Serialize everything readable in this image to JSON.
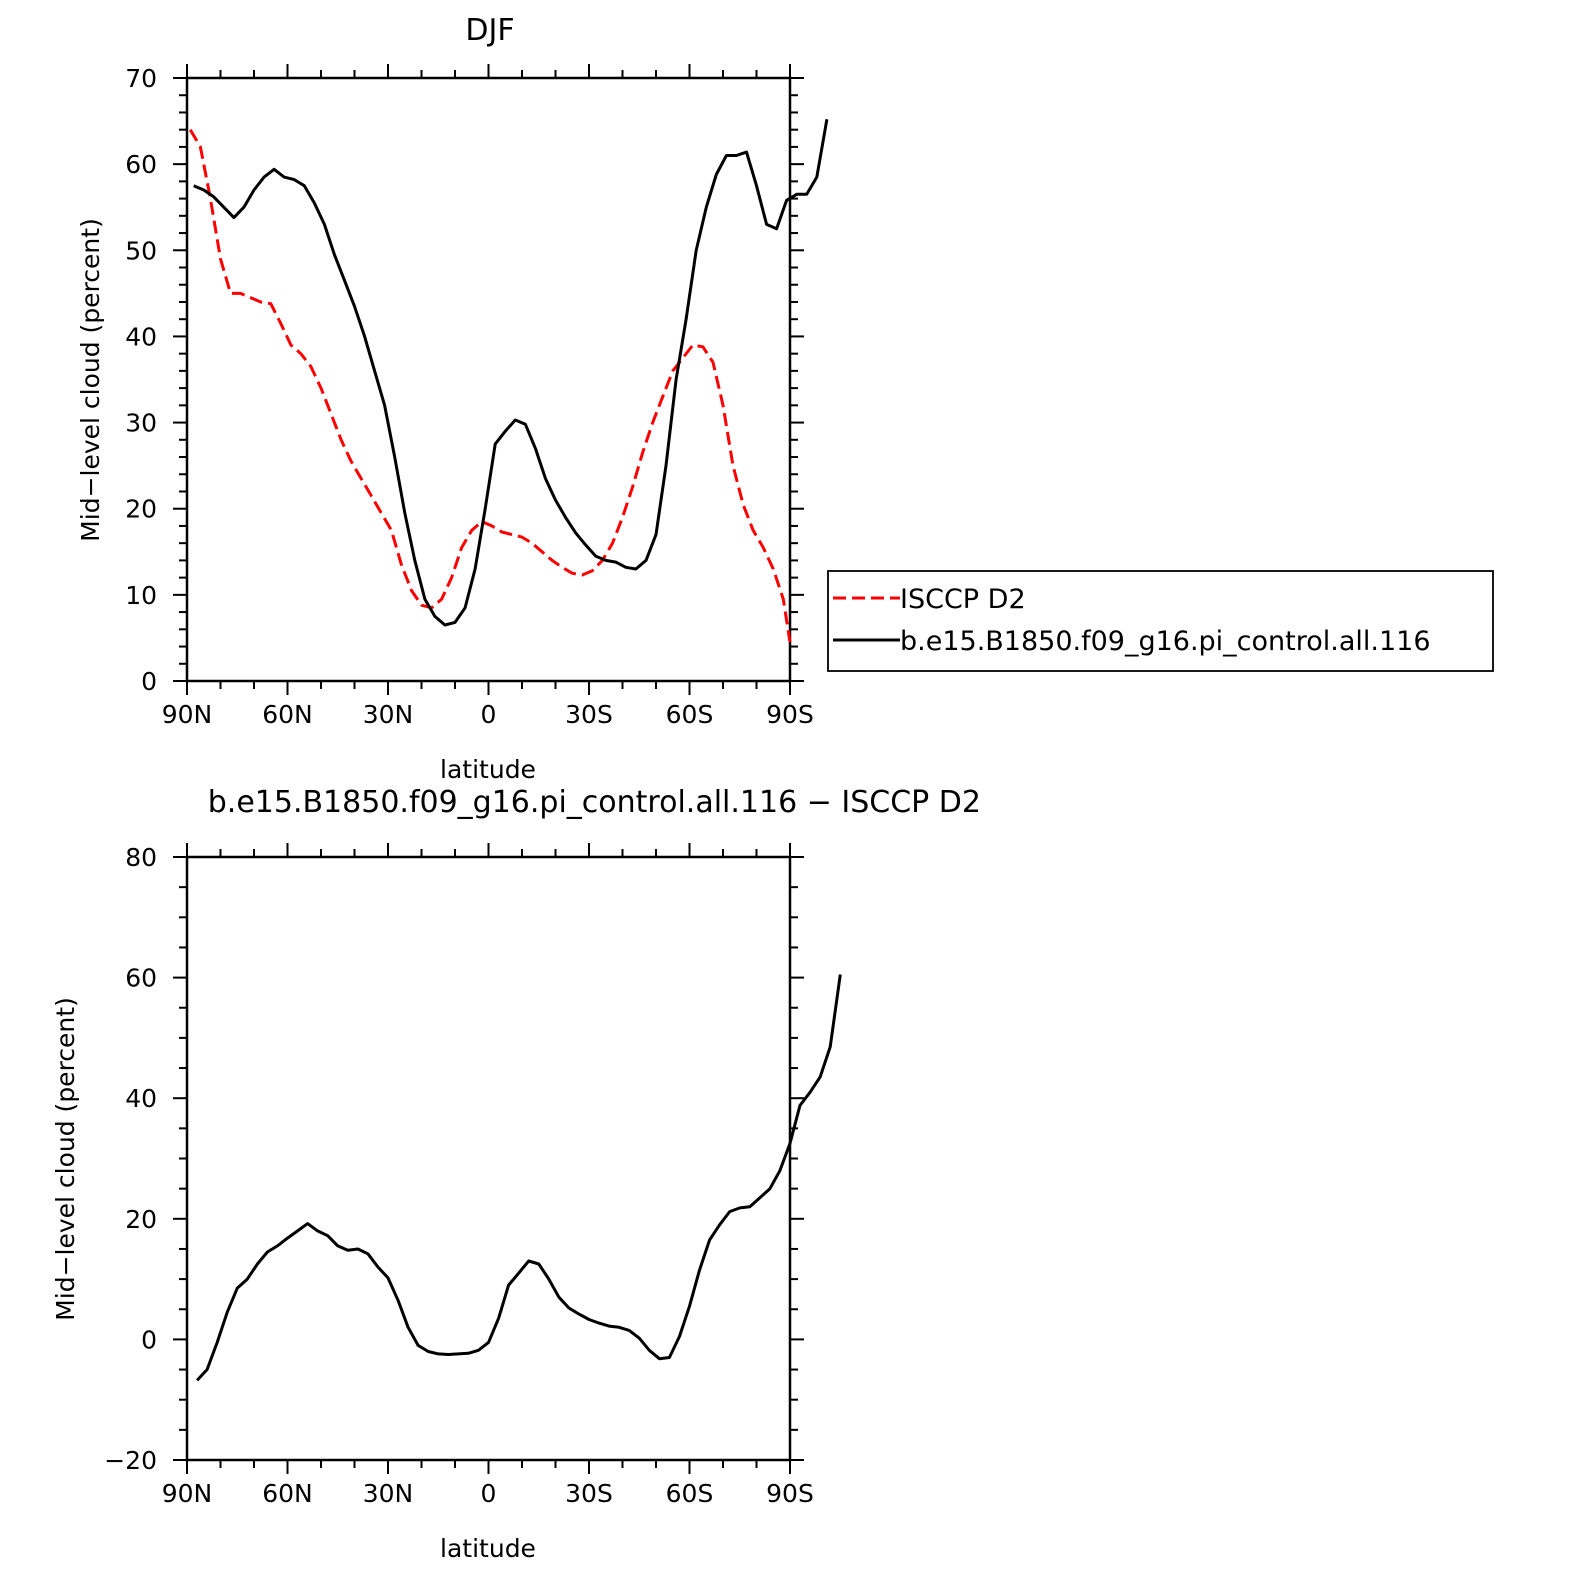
{
  "chart_data": [
    {
      "type": "line",
      "title": "DJF",
      "xlabel": "latitude",
      "ylabel": "Mid−level cloud (percent)",
      "xlim": [
        90,
        -90
      ],
      "ylim": [
        0,
        70
      ],
      "xticks": [
        90,
        60,
        30,
        0,
        -30,
        -60,
        -90
      ],
      "xtick_labels": [
        "90N",
        "60N",
        "30N",
        "0",
        "30S",
        "60S",
        "90S"
      ],
      "yticks": [
        0,
        10,
        20,
        30,
        40,
        50,
        60,
        70
      ],
      "ytick_labels": [
        "0",
        "10",
        "20",
        "30",
        "40",
        "50",
        "60",
        "70"
      ],
      "legend_position": "right",
      "series": [
        {
          "name": "ISCCP D2",
          "color": "#ff0000",
          "dash": "dashed",
          "points": [
            [
              89,
              64.0
            ],
            [
              86,
              62.0
            ],
            [
              83,
              56.0
            ],
            [
              80,
              49.0
            ],
            [
              77,
              45.0
            ],
            [
              74,
              45.0
            ],
            [
              71,
              44.5
            ],
            [
              68,
              44.0
            ],
            [
              65,
              43.8
            ],
            [
              62,
              41.5
            ],
            [
              59,
              39.0
            ],
            [
              56,
              38.0
            ],
            [
              53,
              36.5
            ],
            [
              50,
              34.0
            ],
            [
              47,
              31.0
            ],
            [
              44,
              28.0
            ],
            [
              41,
              25.5
            ],
            [
              38,
              23.5
            ],
            [
              35,
              21.5
            ],
            [
              32,
              19.5
            ],
            [
              29,
              17.5
            ],
            [
              26,
              13.5
            ],
            [
              23,
              10.5
            ],
            [
              20,
              8.8
            ],
            [
              17,
              8.5
            ],
            [
              14,
              9.5
            ],
            [
              11,
              12.0
            ],
            [
              8,
              15.5
            ],
            [
              5,
              17.5
            ],
            [
              2,
              18.5
            ],
            [
              -1,
              18.0
            ],
            [
              -4,
              17.3
            ],
            [
              -7,
              17.0
            ],
            [
              -10,
              16.7
            ],
            [
              -13,
              16.0
            ],
            [
              -16,
              15.0
            ],
            [
              -19,
              14.0
            ],
            [
              -22,
              13.2
            ],
            [
              -25,
              12.5
            ],
            [
              -28,
              12.3
            ],
            [
              -31,
              12.8
            ],
            [
              -34,
              14.0
            ],
            [
              -37,
              16.0
            ],
            [
              -40,
              19.0
            ],
            [
              -43,
              22.5
            ],
            [
              -46,
              26.5
            ],
            [
              -49,
              30.0
            ],
            [
              -52,
              33.0
            ],
            [
              -55,
              36.0
            ],
            [
              -58,
              37.5
            ],
            [
              -61,
              39.0
            ],
            [
              -64,
              38.8
            ],
            [
              -67,
              37.0
            ],
            [
              -70,
              32.0
            ],
            [
              -73,
              25.0
            ],
            [
              -76,
              20.5
            ],
            [
              -79,
              17.5
            ],
            [
              -82,
              15.5
            ],
            [
              -85,
              13.0
            ],
            [
              -88,
              9.5
            ],
            [
              -90,
              4.5
            ]
          ]
        },
        {
          "name": "b.e15.B1850.f09_g16.pi_control.all.116",
          "color": "#000000",
          "dash": "solid",
          "points": [
            [
              88,
              57.5
            ],
            [
              85,
              57.0
            ],
            [
              82,
              56.2
            ],
            [
              79,
              55.0
            ],
            [
              76,
              53.8
            ],
            [
              73,
              55.0
            ],
            [
              70,
              57.0
            ],
            [
              67,
              58.5
            ],
            [
              64,
              59.4
            ],
            [
              61,
              58.5
            ],
            [
              58,
              58.2
            ],
            [
              55,
              57.5
            ],
            [
              52,
              55.5
            ],
            [
              49,
              53.0
            ],
            [
              46,
              49.5
            ],
            [
              43,
              46.5
            ],
            [
              40,
              43.5
            ],
            [
              37,
              40.0
            ],
            [
              34,
              36.0
            ],
            [
              31,
              32.0
            ],
            [
              28,
              26.0
            ],
            [
              25,
              19.5
            ],
            [
              22,
              14.0
            ],
            [
              19,
              9.5
            ],
            [
              16,
              7.5
            ],
            [
              13,
              6.5
            ],
            [
              10,
              6.8
            ],
            [
              7,
              8.5
            ],
            [
              4,
              13.0
            ],
            [
              1,
              20.0
            ],
            [
              -2,
              27.5
            ],
            [
              -5,
              29.0
            ],
            [
              -8,
              30.3
            ],
            [
              -11,
              29.8
            ],
            [
              -14,
              27.0
            ],
            [
              -17,
              23.5
            ],
            [
              -20,
              21.0
            ],
            [
              -23,
              19.0
            ],
            [
              -26,
              17.2
            ],
            [
              -29,
              15.8
            ],
            [
              -32,
              14.5
            ],
            [
              -35,
              14.0
            ],
            [
              -38,
              13.8
            ],
            [
              -41,
              13.2
            ],
            [
              -44,
              13.0
            ],
            [
              -47,
              14.0
            ],
            [
              -50,
              17.0
            ],
            [
              -53,
              25.0
            ],
            [
              -56,
              35.0
            ],
            [
              -59,
              42.0
            ],
            [
              -62,
              50.0
            ],
            [
              -65,
              55.0
            ],
            [
              -68,
              58.8
            ],
            [
              -71,
              61.0
            ],
            [
              -74,
              61.0
            ],
            [
              -77,
              61.4
            ],
            [
              -80,
              57.5
            ],
            [
              -83,
              53.0
            ],
            [
              -86,
              52.5
            ],
            [
              -89,
              55.8
            ],
            [
              -92,
              56.5
            ],
            [
              -95,
              56.5
            ],
            [
              -98,
              58.5
            ],
            [
              -101,
              65.2
            ]
          ]
        }
      ]
    },
    {
      "type": "line",
      "title": "b.e15.B1850.f09_g16.pi_control.all.116 − ISCCP D2",
      "xlabel": "latitude",
      "ylabel": "Mid−level cloud (percent)",
      "xlim": [
        90,
        -90
      ],
      "ylim": [
        -20,
        80
      ],
      "xticks": [
        90,
        60,
        30,
        0,
        -30,
        -60,
        -90
      ],
      "xtick_labels": [
        "90N",
        "60N",
        "30N",
        "0",
        "30S",
        "60S",
        "90S"
      ],
      "yticks": [
        -20,
        0,
        20,
        40,
        60,
        80
      ],
      "ytick_labels": [
        "−20",
        "0",
        "20",
        "40",
        "60",
        "80"
      ],
      "series": [
        {
          "color": "#000000",
          "dash": "solid",
          "points": [
            [
              87,
              -6.8
            ],
            [
              84,
              -5.0
            ],
            [
              81,
              -0.5
            ],
            [
              78,
              4.5
            ],
            [
              75,
              8.5
            ],
            [
              72,
              10.0
            ],
            [
              69,
              12.5
            ],
            [
              66,
              14.5
            ],
            [
              63,
              15.5
            ],
            [
              60,
              16.8
            ],
            [
              57,
              18.0
            ],
            [
              54,
              19.2
            ],
            [
              51,
              18.0
            ],
            [
              48,
              17.2
            ],
            [
              45,
              15.5
            ],
            [
              42,
              14.8
            ],
            [
              39,
              15.0
            ],
            [
              36,
              14.2
            ],
            [
              33,
              12.0
            ],
            [
              30,
              10.2
            ],
            [
              27,
              6.5
            ],
            [
              24,
              2.0
            ],
            [
              21,
              -1.0
            ],
            [
              18,
              -2.0
            ],
            [
              15,
              -2.4
            ],
            [
              12,
              -2.5
            ],
            [
              9,
              -2.4
            ],
            [
              6,
              -2.3
            ],
            [
              3,
              -1.8
            ],
            [
              0,
              -0.5
            ],
            [
              -3,
              3.5
            ],
            [
              -6,
              9.0
            ],
            [
              -9,
              11.0
            ],
            [
              -12,
              13.0
            ],
            [
              -15,
              12.5
            ],
            [
              -18,
              10.0
            ],
            [
              -21,
              7.0
            ],
            [
              -24,
              5.2
            ],
            [
              -27,
              4.2
            ],
            [
              -30,
              3.3
            ],
            [
              -33,
              2.7
            ],
            [
              -36,
              2.2
            ],
            [
              -39,
              2.0
            ],
            [
              -42,
              1.5
            ],
            [
              -45,
              0.2
            ],
            [
              -48,
              -1.8
            ],
            [
              -51,
              -3.2
            ],
            [
              -54,
              -3.0
            ],
            [
              -57,
              0.5
            ],
            [
              -60,
              5.5
            ],
            [
              -63,
              11.5
            ],
            [
              -66,
              16.5
            ],
            [
              -69,
              19.0
            ],
            [
              -72,
              21.2
            ],
            [
              -75,
              21.8
            ],
            [
              -78,
              22.0
            ],
            [
              -81,
              23.5
            ],
            [
              -84,
              25.0
            ],
            [
              -87,
              28.0
            ],
            [
              -90,
              32.5
            ],
            [
              -93,
              38.8
            ],
            [
              -96,
              41.0
            ],
            [
              -99,
              43.5
            ],
            [
              -102,
              48.5
            ],
            [
              -105,
              60.5
            ]
          ]
        }
      ]
    }
  ]
}
